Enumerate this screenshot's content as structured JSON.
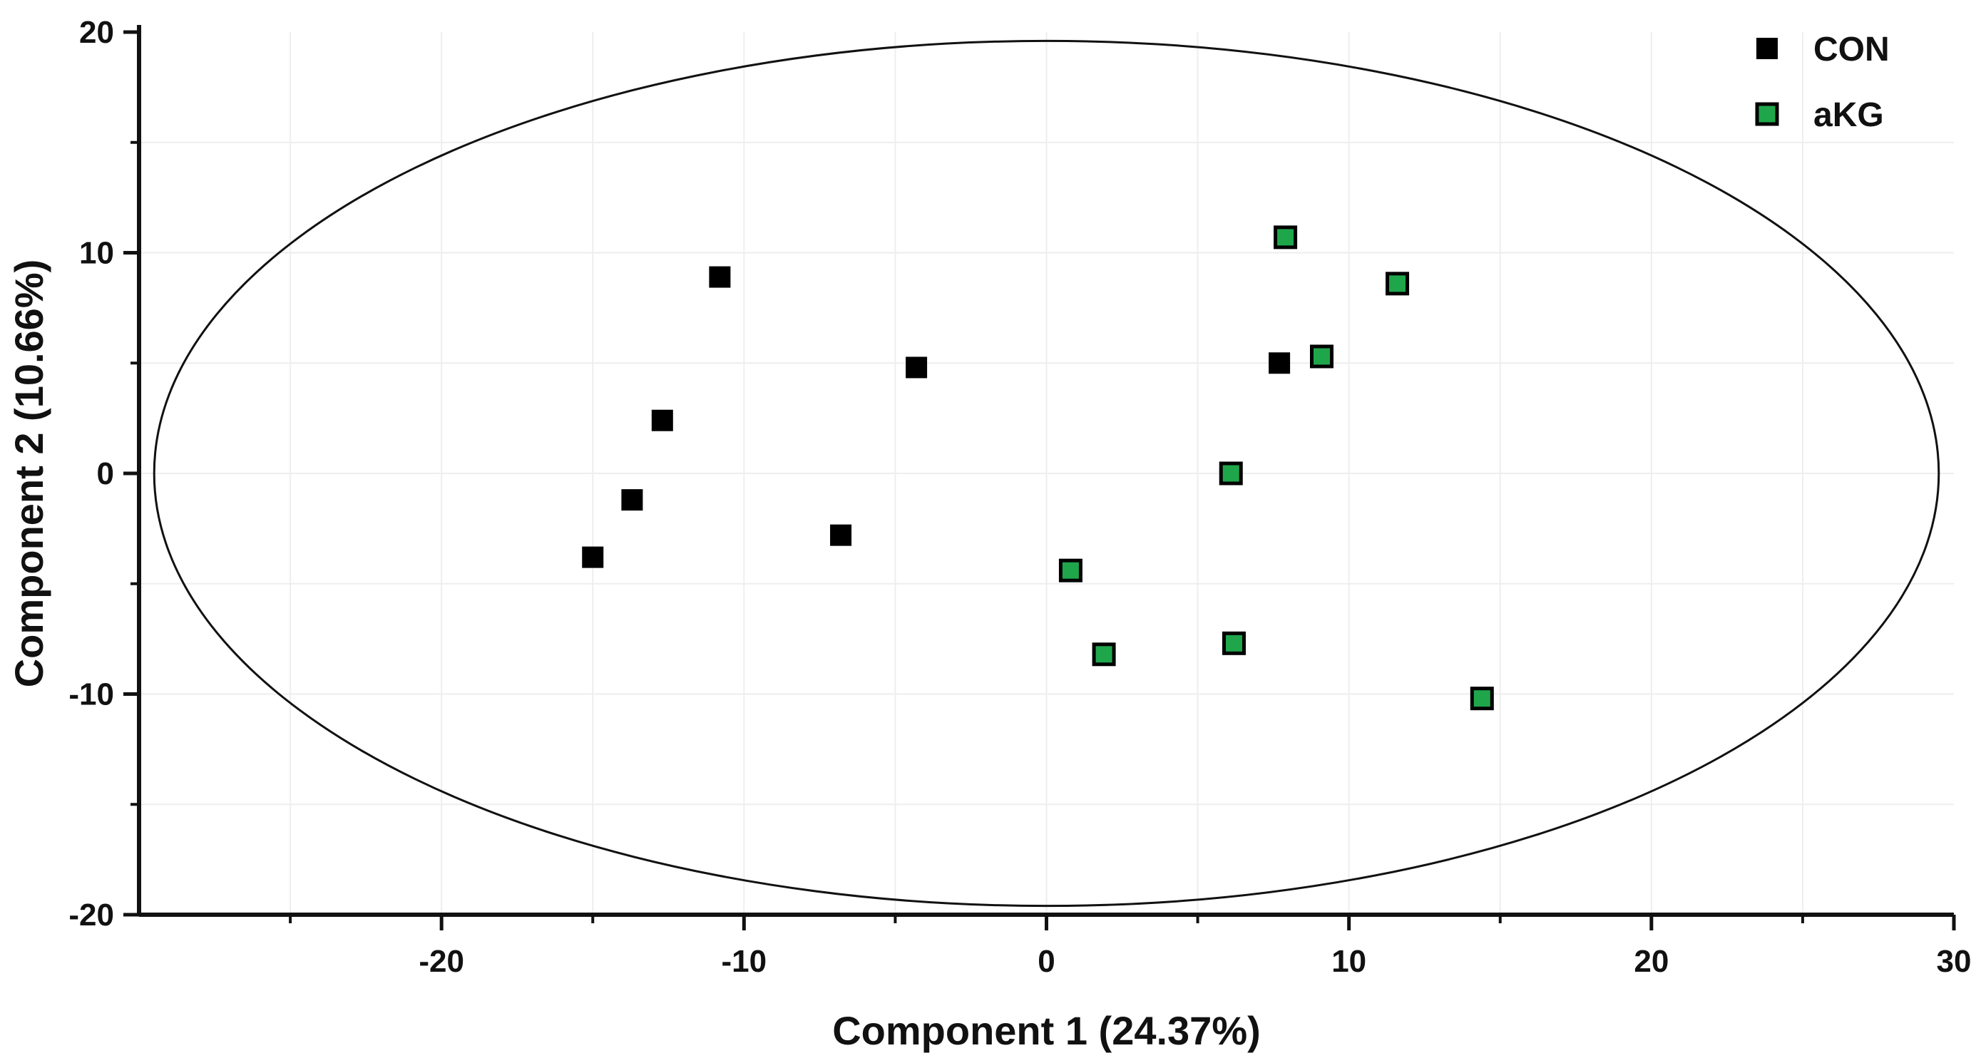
{
  "chart_data": {
    "type": "scatter",
    "title": "",
    "xlabel": "Component 1 (24.37%)",
    "ylabel": "Component 2 (10.66%)",
    "xlim": [
      -30,
      30
    ],
    "ylim": [
      -20,
      20
    ],
    "x_ticks": [
      -20,
      -10,
      0,
      10,
      20,
      30
    ],
    "y_ticks": [
      -20,
      -10,
      0,
      10,
      20
    ],
    "x_tick_labels": [
      "-20",
      "-10",
      "0",
      "10",
      "20",
      "30"
    ],
    "y_tick_labels": [
      "-20",
      "-10",
      "0",
      "10",
      "20"
    ],
    "grid": true,
    "legend_position": "top-right",
    "ellipse": {
      "center": [
        0,
        0
      ],
      "semi_axis_x": 29.5,
      "semi_axis_y": 19.6
    },
    "series": [
      {
        "name": "CON",
        "color": "#000000",
        "points": [
          {
            "x": -15.0,
            "y": -3.8
          },
          {
            "x": -13.7,
            "y": -1.2
          },
          {
            "x": -12.7,
            "y": 2.4
          },
          {
            "x": -10.8,
            "y": 8.9
          },
          {
            "x": -6.8,
            "y": -2.8
          },
          {
            "x": -4.3,
            "y": 4.8
          },
          {
            "x": 7.7,
            "y": 5.0
          }
        ]
      },
      {
        "name": "aKG",
        "color": "#1fa64b",
        "points": [
          {
            "x": 0.8,
            "y": -4.4
          },
          {
            "x": 1.9,
            "y": -8.2
          },
          {
            "x": 6.1,
            "y": 0.0
          },
          {
            "x": 6.2,
            "y": -7.7
          },
          {
            "x": 7.9,
            "y": 10.7
          },
          {
            "x": 9.1,
            "y": 5.3
          },
          {
            "x": 11.6,
            "y": 8.6
          },
          {
            "x": 14.4,
            "y": -10.2
          }
        ]
      }
    ]
  }
}
